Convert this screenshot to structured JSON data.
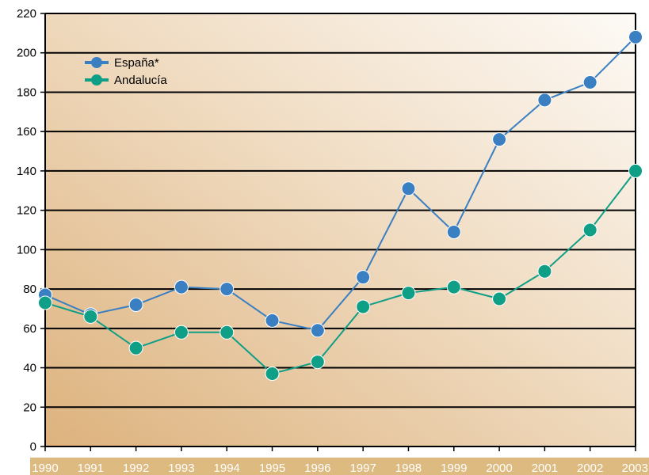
{
  "chart_data": {
    "type": "line",
    "x": [
      "1990",
      "1991",
      "1992",
      "1993",
      "1994",
      "1995",
      "1996",
      "1997",
      "1998",
      "1999",
      "2000",
      "2001",
      "2002",
      "2003"
    ],
    "ylim": [
      0,
      220
    ],
    "yticks": [
      0,
      20,
      40,
      60,
      80,
      100,
      120,
      140,
      160,
      180,
      200,
      220
    ],
    "grid": "horizontal",
    "legend_position": "top-left",
    "series": [
      {
        "name": "España*",
        "color": "#3a7fc1",
        "values": [
          77,
          67,
          72,
          81,
          80,
          64,
          59,
          86,
          131,
          109,
          156,
          176,
          185,
          208
        ]
      },
      {
        "name": "Andalucía",
        "color": "#0f9e86",
        "values": [
          73,
          66,
          50,
          58,
          58,
          37,
          43,
          71,
          78,
          81,
          75,
          89,
          110,
          140
        ]
      }
    ]
  },
  "colors": {
    "plot_bg_warm": "#ddb27d",
    "plot_bg_light": "#fdfaf6",
    "xaxis_band": "#ddba80",
    "grid": "#000000"
  }
}
